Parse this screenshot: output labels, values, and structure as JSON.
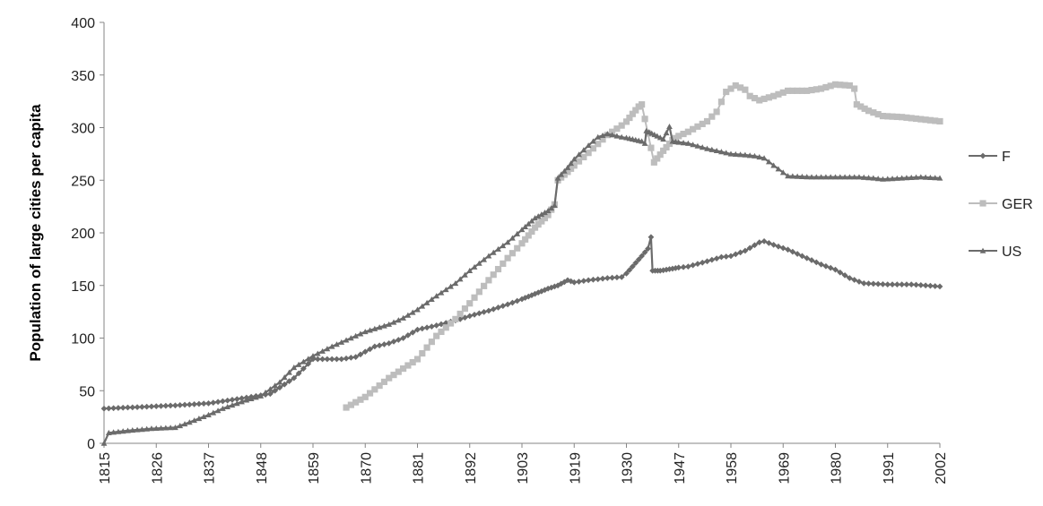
{
  "chart_data": {
    "type": "line",
    "title": "",
    "xlabel": "",
    "ylabel": "Population of large cities per capita",
    "ylim": [
      0,
      400
    ],
    "yticks": [
      "0",
      "50",
      "100",
      "150",
      "200",
      "250",
      "300",
      "350",
      "400"
    ],
    "xticks": [
      "1815",
      "1826",
      "1837",
      "1848",
      "1859",
      "1870",
      "1881",
      "1892",
      "1903",
      "1919",
      "1930",
      "1947",
      "1958",
      "1969",
      "1980",
      "1991",
      "2002"
    ],
    "grid": false,
    "legend_position": "right",
    "series": [
      {
        "name": "F",
        "color": "#6b6b6b",
        "marker": "diamond",
        "points": [
          [
            1815,
            33
          ],
          [
            1820,
            34
          ],
          [
            1825,
            35
          ],
          [
            1830,
            36
          ],
          [
            1837,
            38
          ],
          [
            1843,
            42
          ],
          [
            1850,
            47
          ],
          [
            1855,
            62
          ],
          [
            1859,
            80
          ],
          [
            1865,
            80
          ],
          [
            1868,
            82
          ],
          [
            1872,
            92
          ],
          [
            1875,
            95
          ],
          [
            1878,
            100
          ],
          [
            1881,
            108
          ],
          [
            1885,
            112
          ],
          [
            1890,
            118
          ],
          [
            1892,
            121
          ],
          [
            1896,
            126
          ],
          [
            1900,
            132
          ],
          [
            1903,
            137
          ],
          [
            1907,
            142
          ],
          [
            1911,
            147
          ],
          [
            1914,
            150
          ],
          [
            1917,
            155
          ],
          [
            1919,
            153
          ],
          [
            1922,
            155
          ],
          [
            1926,
            157
          ],
          [
            1929,
            158
          ],
          [
            1932,
            168
          ],
          [
            1935,
            178
          ],
          [
            1937,
            185
          ],
          [
            1938,
            196
          ],
          [
            1938.5,
            164
          ],
          [
            1941,
            164
          ],
          [
            1945,
            166
          ],
          [
            1949,
            168
          ],
          [
            1953,
            173
          ],
          [
            1956,
            177
          ],
          [
            1958,
            178
          ],
          [
            1961,
            183
          ],
          [
            1964,
            191
          ],
          [
            1965,
            192
          ],
          [
            1968,
            187
          ],
          [
            1970,
            184
          ],
          [
            1974,
            176
          ],
          [
            1977,
            170
          ],
          [
            1980,
            165
          ],
          [
            1983,
            157
          ],
          [
            1986,
            152
          ],
          [
            1991,
            151
          ],
          [
            1996,
            151
          ],
          [
            2002,
            149
          ]
        ]
      },
      {
        "name": "GER",
        "color": "#bdbdbd",
        "marker": "square",
        "points": [
          [
            1866,
            34
          ],
          [
            1870,
            44
          ],
          [
            1875,
            62
          ],
          [
            1881,
            80
          ],
          [
            1885,
            102
          ],
          [
            1889,
            118
          ],
          [
            1892,
            133
          ],
          [
            1896,
            155
          ],
          [
            1900,
            176
          ],
          [
            1903,
            190
          ],
          [
            1907,
            205
          ],
          [
            1911,
            217
          ],
          [
            1913,
            227
          ],
          [
            1914,
            250
          ],
          [
            1917,
            258
          ],
          [
            1919,
            264
          ],
          [
            1922,
            276
          ],
          [
            1926,
            293
          ],
          [
            1929,
            302
          ],
          [
            1932,
            313
          ],
          [
            1934,
            320
          ],
          [
            1935,
            322
          ],
          [
            1939,
            267
          ],
          [
            1942,
            278
          ],
          [
            1945,
            288
          ],
          [
            1949,
            296
          ],
          [
            1953,
            306
          ],
          [
            1955,
            315
          ],
          [
            1957,
            334
          ],
          [
            1959,
            340
          ],
          [
            1961,
            336
          ],
          [
            1962,
            330
          ],
          [
            1964,
            326
          ],
          [
            1967,
            330
          ],
          [
            1970,
            335
          ],
          [
            1974,
            335
          ],
          [
            1977,
            337
          ],
          [
            1980,
            341
          ],
          [
            1983,
            340
          ],
          [
            1984,
            337
          ],
          [
            1984.5,
            322
          ],
          [
            1987,
            316
          ],
          [
            1990,
            311
          ],
          [
            1994,
            310
          ],
          [
            1998,
            308
          ],
          [
            2002,
            306
          ]
        ]
      },
      {
        "name": "US",
        "color": "#6b6b6b",
        "marker": "triangle",
        "points": [
          [
            1815,
            0
          ],
          [
            1816,
            10
          ],
          [
            1820,
            12
          ],
          [
            1825,
            14
          ],
          [
            1830,
            15
          ],
          [
            1833,
            20
          ],
          [
            1837,
            27
          ],
          [
            1840,
            33
          ],
          [
            1845,
            41
          ],
          [
            1848,
            45
          ],
          [
            1852,
            58
          ],
          [
            1855,
            72
          ],
          [
            1859,
            83
          ],
          [
            1863,
            92
          ],
          [
            1867,
            100
          ],
          [
            1870,
            106
          ],
          [
            1875,
            113
          ],
          [
            1878,
            119
          ],
          [
            1881,
            127
          ],
          [
            1885,
            140
          ],
          [
            1889,
            152
          ],
          [
            1892,
            164
          ],
          [
            1896,
            178
          ],
          [
            1900,
            191
          ],
          [
            1903,
            203
          ],
          [
            1907,
            214
          ],
          [
            1911,
            221
          ],
          [
            1913,
            226
          ],
          [
            1914,
            252
          ],
          [
            1917,
            262
          ],
          [
            1919,
            270
          ],
          [
            1922,
            283
          ],
          [
            1924,
            291
          ],
          [
            1926,
            294
          ],
          [
            1929,
            291
          ],
          [
            1932,
            289
          ],
          [
            1935,
            287
          ],
          [
            1936,
            285
          ],
          [
            1936.5,
            297
          ],
          [
            1940,
            292
          ],
          [
            1942,
            289
          ],
          [
            1944,
            301
          ],
          [
            1945,
            287
          ],
          [
            1949,
            285
          ],
          [
            1953,
            280
          ],
          [
            1958,
            275
          ],
          [
            1961,
            274
          ],
          [
            1963,
            273
          ],
          [
            1965,
            271
          ],
          [
            1967,
            264
          ],
          [
            1970,
            254
          ],
          [
            1975,
            253
          ],
          [
            1980,
            253
          ],
          [
            1985,
            253
          ],
          [
            1988,
            252
          ],
          [
            1990,
            251
          ],
          [
            1994,
            252
          ],
          [
            1998,
            253
          ],
          [
            2002,
            252
          ]
        ]
      }
    ]
  }
}
